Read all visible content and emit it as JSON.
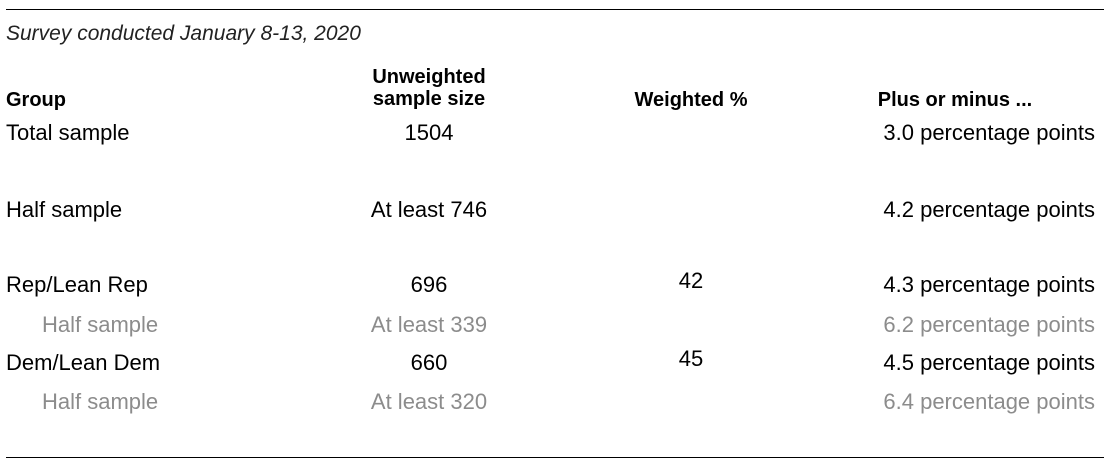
{
  "subtitle": "Survey conducted January 8-13, 2020",
  "headers": {
    "group": "Group",
    "unweighted_line1": "Unweighted",
    "unweighted_line2": "sample size",
    "weighted": "Weighted %",
    "plus_minus": "Plus or minus ..."
  },
  "rows": [
    {
      "group": "Total sample",
      "unweighted": "1504",
      "weighted": "",
      "plus_minus": "3.0 percentage points"
    },
    {
      "group": "Half sample",
      "unweighted": "At least 746",
      "weighted": "",
      "plus_minus": "4.2 percentage points"
    },
    {
      "group": "Rep/Lean Rep",
      "unweighted": "696",
      "weighted": "42",
      "plus_minus": "4.3 percentage points"
    },
    {
      "group": "Half sample",
      "unweighted": "At least 339",
      "weighted": "",
      "plus_minus": "6.2 percentage points"
    },
    {
      "group": "Dem/Lean Dem",
      "unweighted": "660",
      "weighted": "45",
      "plus_minus": "4.5 percentage points"
    },
    {
      "group": "Half sample",
      "unweighted": "At least 320",
      "weighted": "",
      "plus_minus": "6.4 percentage points"
    }
  ],
  "colors": {
    "primary_text": "#000000",
    "subgroup_text": "#8c8c8c"
  }
}
